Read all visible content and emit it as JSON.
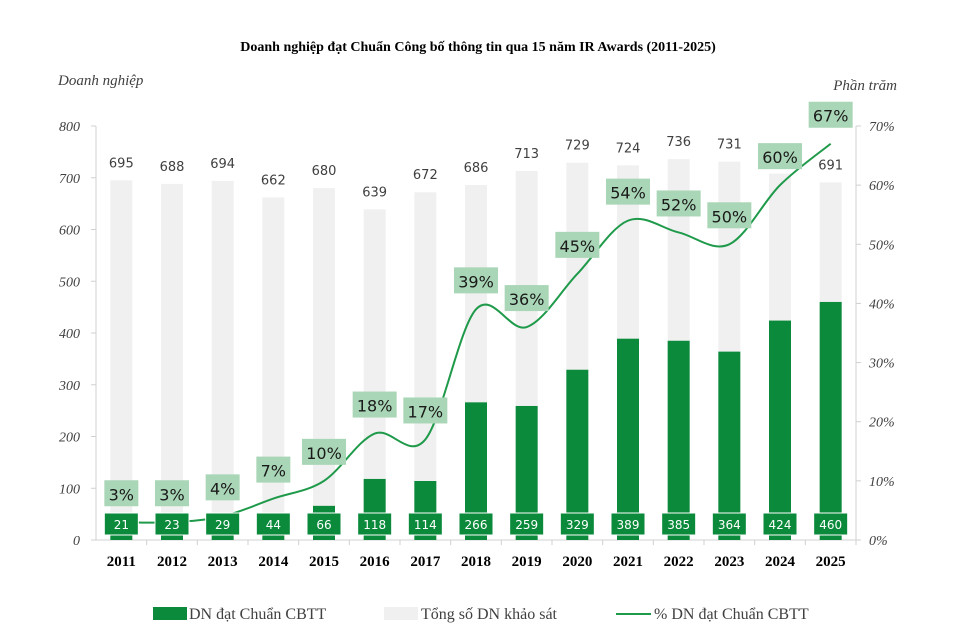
{
  "colors": {
    "primary_bar": "#0a8a3a",
    "total_bar": "#f0f0f0",
    "line": "#1f9a4a",
    "pct_label_bg": "#a9d6b6",
    "axis": "#d0d0d0"
  },
  "chart_data": {
    "type": "bar+line",
    "title": "Doanh nghiệp đạt Chuẩn Công bố thông tin qua 15 năm IR Awards (2011-2025)",
    "ylabel_left": "Doanh nghiệp",
    "ylabel_right": "Phần trăm",
    "categories": [
      "2011",
      "2012",
      "2013",
      "2014",
      "2015",
      "2016",
      "2017",
      "2018",
      "2019",
      "2020",
      "2021",
      "2022",
      "2023",
      "2024",
      "2025"
    ],
    "ylim_left": [
      0,
      800
    ],
    "yticks_left": [
      "0",
      "100",
      "200",
      "300",
      "400",
      "500",
      "600",
      "700",
      "800"
    ],
    "ylim_right": [
      0,
      70
    ],
    "yticks_right": [
      "0%",
      "10%",
      "20%",
      "30%",
      "40%",
      "50%",
      "60%",
      "70%"
    ],
    "series": [
      {
        "name": "DN đạt Chuẩn CBTT",
        "kind": "bar",
        "values": [
          21,
          23,
          29,
          44,
          66,
          118,
          114,
          266,
          259,
          329,
          389,
          385,
          364,
          424,
          460
        ]
      },
      {
        "name": "Tổng số DN khảo sát",
        "kind": "bar",
        "values": [
          695,
          688,
          694,
          662,
          680,
          639,
          672,
          686,
          713,
          729,
          724,
          736,
          731,
          708,
          691
        ]
      },
      {
        "name": "% DN đạt Chuẩn CBTT",
        "kind": "line",
        "values": [
          3,
          3,
          4,
          7,
          10,
          18,
          17,
          39,
          36,
          45,
          54,
          52,
          50,
          60,
          67
        ],
        "labels": [
          "3%",
          "3%",
          "4%",
          "7%",
          "10%",
          "18%",
          "17%",
          "39%",
          "36%",
          "45%",
          "54%",
          "52%",
          "50%",
          "60%",
          "67%"
        ]
      }
    ],
    "legend": [
      "DN đạt Chuẩn CBTT",
      "Tổng số DN khảo sát",
      "% DN đạt Chuẩn CBTT"
    ],
    "legend_position": "bottom",
    "grid": false
  }
}
